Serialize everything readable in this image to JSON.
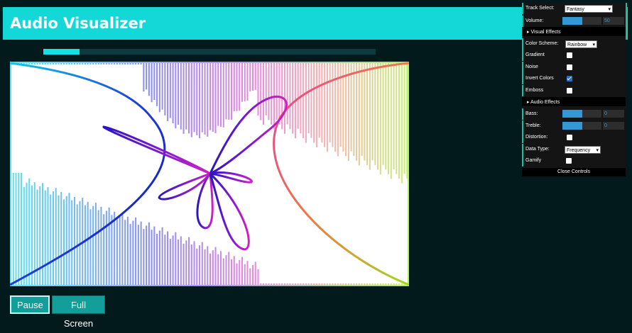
{
  "header": {
    "title": "Audio Visualizer"
  },
  "progress": {
    "fraction": 0.11
  },
  "controls": {
    "track_select": {
      "label": "Track Select:",
      "value": "Fantasy"
    },
    "volume": {
      "label": "Volume:",
      "value": "50",
      "fraction": 0.5
    },
    "visual_effects": {
      "header": "Visual Effects",
      "color_scheme": {
        "label": "Color Scheme:",
        "value": "Rainbow"
      },
      "gradient": {
        "label": "Gradient",
        "checked": false
      },
      "noise": {
        "label": "Noise",
        "checked": false
      },
      "invert_colors": {
        "label": "Invert Colors",
        "checked": true
      },
      "emboss": {
        "label": "Emboss",
        "checked": false
      }
    },
    "audio_effects": {
      "header": "Audio Effects",
      "bass": {
        "label": "Bass:",
        "value": "0",
        "fraction": 0.5
      },
      "treble": {
        "label": "Treble:",
        "value": "0",
        "fraction": 0.5
      },
      "distortion": {
        "label": "Distortion:",
        "checked": false
      }
    },
    "data_type": {
      "label": "Data Type:",
      "value": "Frequency"
    },
    "gamify": {
      "label": "Gamify",
      "checked": false
    },
    "close_label": "Close Controls"
  },
  "buttons": {
    "pause": "Pause",
    "full_screen": "Full Screen"
  },
  "icons": {
    "select_arrow": "chevron-down-icon",
    "sect_arrow": "triangle-right-icon"
  },
  "colors": {
    "accent": "#14d8d8",
    "button": "#129e99",
    "slider": "#3598d6",
    "panel": "#141414"
  }
}
